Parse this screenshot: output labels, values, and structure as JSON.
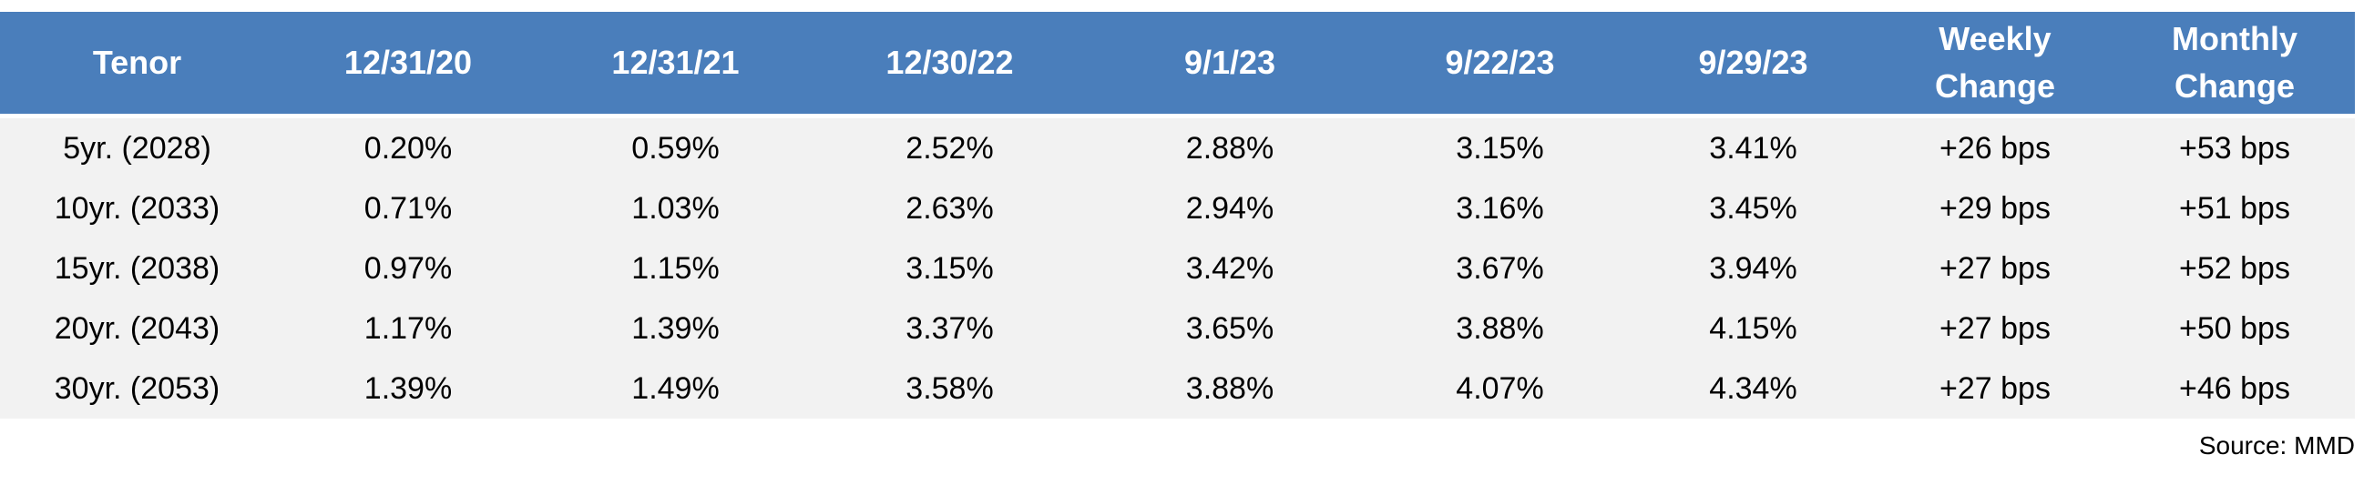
{
  "table": {
    "header": [
      "Tenor",
      "12/31/20",
      "12/31/21",
      "12/30/22",
      "9/1/23",
      "9/22/23",
      "9/29/23",
      "Weekly Change",
      "Monthly Change"
    ],
    "rows": [
      [
        "5yr. (2028)",
        "0.20%",
        "0.59%",
        "2.52%",
        "2.88%",
        "3.15%",
        "3.41%",
        "+26 bps",
        "+53 bps"
      ],
      [
        "10yr. (2033)",
        "0.71%",
        "1.03%",
        "2.63%",
        "2.94%",
        "3.16%",
        "3.45%",
        "+29 bps",
        "+51 bps"
      ],
      [
        "15yr. (2038)",
        "0.97%",
        "1.15%",
        "3.15%",
        "3.42%",
        "3.67%",
        "3.94%",
        "+27 bps",
        "+52 bps"
      ],
      [
        "20yr. (2043)",
        "1.17%",
        "1.39%",
        "3.37%",
        "3.65%",
        "3.88%",
        "4.15%",
        "+27 bps",
        "+50 bps"
      ],
      [
        "30yr. (2053)",
        "1.39%",
        "1.49%",
        "3.58%",
        "3.88%",
        "4.07%",
        "4.34%",
        "+27 bps",
        "+46 bps"
      ]
    ]
  },
  "source": "Source: MMD"
}
